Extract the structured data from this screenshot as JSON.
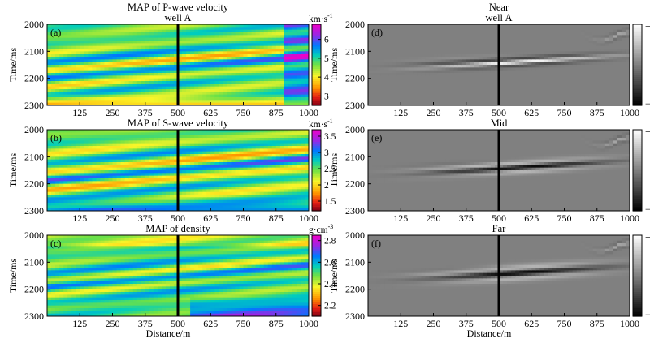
{
  "panels": [
    {
      "id": "a",
      "kind": "color",
      "title_lines": [
        "MAP of P-wave velocity",
        "well A"
      ],
      "letter": "(a)",
      "unit_base": "km·s",
      "unit_exp": "-1",
      "cbar_ticks": [
        "6",
        "5",
        "4",
        "3"
      ],
      "cbar_range": [
        2.5,
        6.8
      ],
      "show_xticks": true,
      "show_xlabel": false
    },
    {
      "id": "b",
      "kind": "color",
      "title_lines": [
        "MAP of S-wave velocity"
      ],
      "letter": "(b)",
      "unit_base": "km·s",
      "unit_exp": "-1",
      "cbar_ticks": [
        "3.5",
        "3",
        "2.5",
        "2",
        "1.5"
      ],
      "cbar_range": [
        1.2,
        3.7
      ],
      "show_xticks": true,
      "show_xlabel": false
    },
    {
      "id": "c",
      "kind": "color",
      "title_lines": [
        "MAP of density"
      ],
      "letter": "(c)",
      "unit_base": "g·cm",
      "unit_exp": "-3",
      "cbar_ticks": [
        "2.8",
        "2.6",
        "2.4",
        "2.2"
      ],
      "cbar_range": [
        2.1,
        2.85
      ],
      "show_xticks": true,
      "show_xlabel": true
    },
    {
      "id": "d",
      "kind": "gray",
      "title_lines": [
        "Near",
        "well A"
      ],
      "letter": "(d)",
      "cbar_ticks": [
        "+",
        "−"
      ],
      "show_xticks": true,
      "show_xlabel": false
    },
    {
      "id": "e",
      "kind": "gray",
      "title_lines": [
        "Mid"
      ],
      "letter": "(e)",
      "cbar_ticks": [
        "+",
        "−"
      ],
      "show_xticks": true,
      "show_xlabel": false
    },
    {
      "id": "f",
      "kind": "gray",
      "title_lines": [
        "Far"
      ],
      "letter": "(f)",
      "cbar_ticks": [
        "+",
        "−"
      ],
      "show_xticks": true,
      "show_xlabel": true
    }
  ],
  "axes": {
    "ylabel": "Time/ms",
    "xlabel": "Distance/m",
    "yticks": [
      "2000",
      "2100",
      "2200",
      "2300"
    ],
    "ylim": [
      2000,
      2300
    ],
    "xticks": [
      "125",
      "250",
      "375",
      "500",
      "625",
      "750",
      "875",
      "1000"
    ],
    "xlim": [
      0,
      1000
    ],
    "well_position": 500
  },
  "colors": {
    "background": "#ffffff",
    "well_line": "#000000"
  }
}
